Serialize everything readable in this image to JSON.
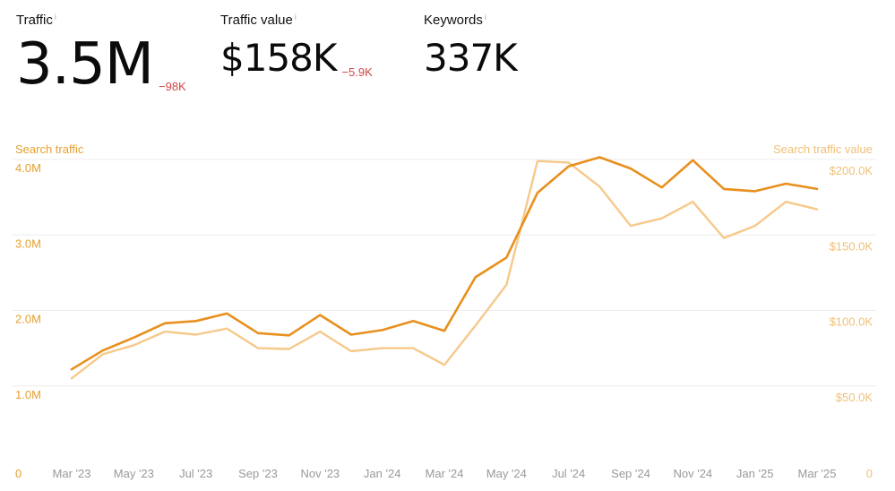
{
  "metrics": {
    "traffic": {
      "label": "Traffic",
      "info": "i",
      "value": "3.5M",
      "delta": "−98K"
    },
    "traffic_value": {
      "label": "Traffic value",
      "info": "i",
      "value": "$158K",
      "delta": "−5.9K"
    },
    "keywords": {
      "label": "Keywords",
      "info": "i",
      "value": "337K"
    }
  },
  "colors": {
    "traffic_line": "#e8901e",
    "value_line": "#f6c98a",
    "left_axis_text": "#e5a030",
    "right_axis_text": "#f0c078",
    "grid": "#ececec",
    "x_axis_text": "#999999",
    "negative_delta": "#d04545"
  },
  "chart_data": {
    "type": "line",
    "left_axis": {
      "title": "Search traffic",
      "ticks": [
        "0",
        "1.0M",
        "2.0M",
        "3.0M",
        "4.0M"
      ],
      "tick_values": [
        0,
        1000000,
        2000000,
        3000000,
        4000000
      ],
      "ylim": [
        0,
        4000000
      ]
    },
    "right_axis": {
      "title": "Search traffic value",
      "ticks": [
        "0",
        "$50.0K",
        "$100.0K",
        "$150.0K",
        "$200.0K"
      ],
      "tick_values": [
        0,
        50000,
        100000,
        150000,
        200000
      ],
      "ylim": [
        0,
        200000
      ]
    },
    "x_ticks": [
      "Mar '23",
      "May '23",
      "Jul '23",
      "Sep '23",
      "Nov '23",
      "Jan '24",
      "Mar '24",
      "May '24",
      "Jul '24",
      "Sep '24",
      "Nov '24",
      "Jan '25",
      "Mar '25"
    ],
    "x": [
      "Mar '23",
      "Apr '23",
      "May '23",
      "Jun '23",
      "Jul '23",
      "Aug '23",
      "Sep '23",
      "Oct '23",
      "Nov '23",
      "Dec '23",
      "Jan '24",
      "Feb '24",
      "Mar '24",
      "Apr '24",
      "May '24",
      "Jun '24",
      "Jul '24",
      "Aug '24",
      "Sep '24",
      "Oct '24",
      "Nov '24",
      "Dec '24",
      "Jan '25",
      "Feb '25",
      "Mar '25"
    ],
    "series": [
      {
        "name": "Search traffic",
        "axis": "left",
        "values": [
          1220000,
          1470000,
          1640000,
          1830000,
          1860000,
          1960000,
          1700000,
          1670000,
          1940000,
          1680000,
          1740000,
          1860000,
          1730000,
          2440000,
          2700000,
          3560000,
          3910000,
          4030000,
          3880000,
          3630000,
          3990000,
          3610000,
          3580000,
          3680000,
          3610000
        ]
      },
      {
        "name": "Search traffic value",
        "axis": "right",
        "values": [
          55000,
          71000,
          77000,
          86000,
          84000,
          88000,
          75000,
          74500,
          86000,
          73000,
          75000,
          75000,
          64000,
          90000,
          117000,
          199000,
          198000,
          182000,
          156000,
          161000,
          172000,
          148000,
          156000,
          172000,
          167000
        ]
      }
    ],
    "grid": true
  }
}
